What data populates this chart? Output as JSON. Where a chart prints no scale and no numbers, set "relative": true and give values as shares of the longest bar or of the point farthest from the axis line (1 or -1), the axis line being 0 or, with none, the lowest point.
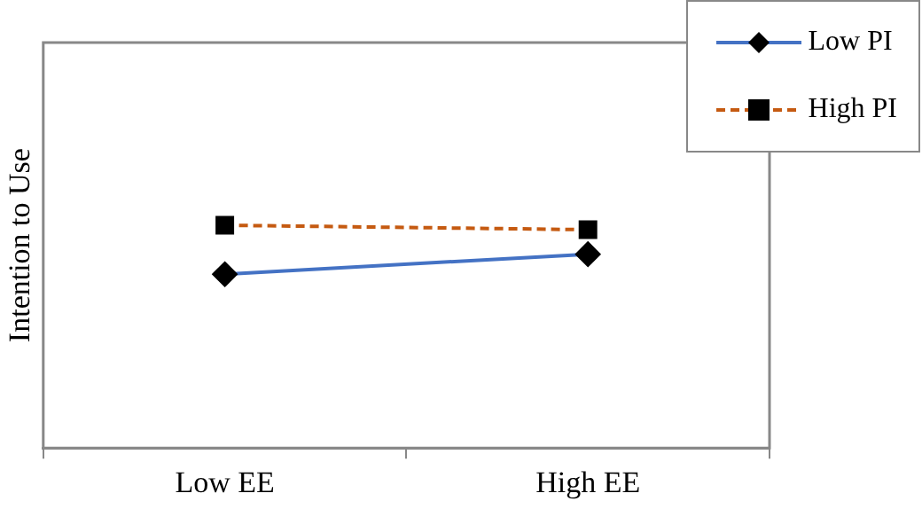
{
  "chart_data": {
    "type": "line",
    "ylabel": "Intention to Use",
    "categories": [
      "Low EE",
      "High EE"
    ],
    "relative": true,
    "series": [
      {
        "name": "Low PI",
        "color": "#4472c4",
        "values": [
          0.78,
          0.87
        ],
        "marker": "diamond",
        "line_style": "solid"
      },
      {
        "name": "High PI",
        "color": "#c55a11",
        "values": [
          1,
          0.98
        ],
        "marker": "square",
        "line_style": "dashed"
      }
    ],
    "legend": "top right",
    "grid": false
  }
}
